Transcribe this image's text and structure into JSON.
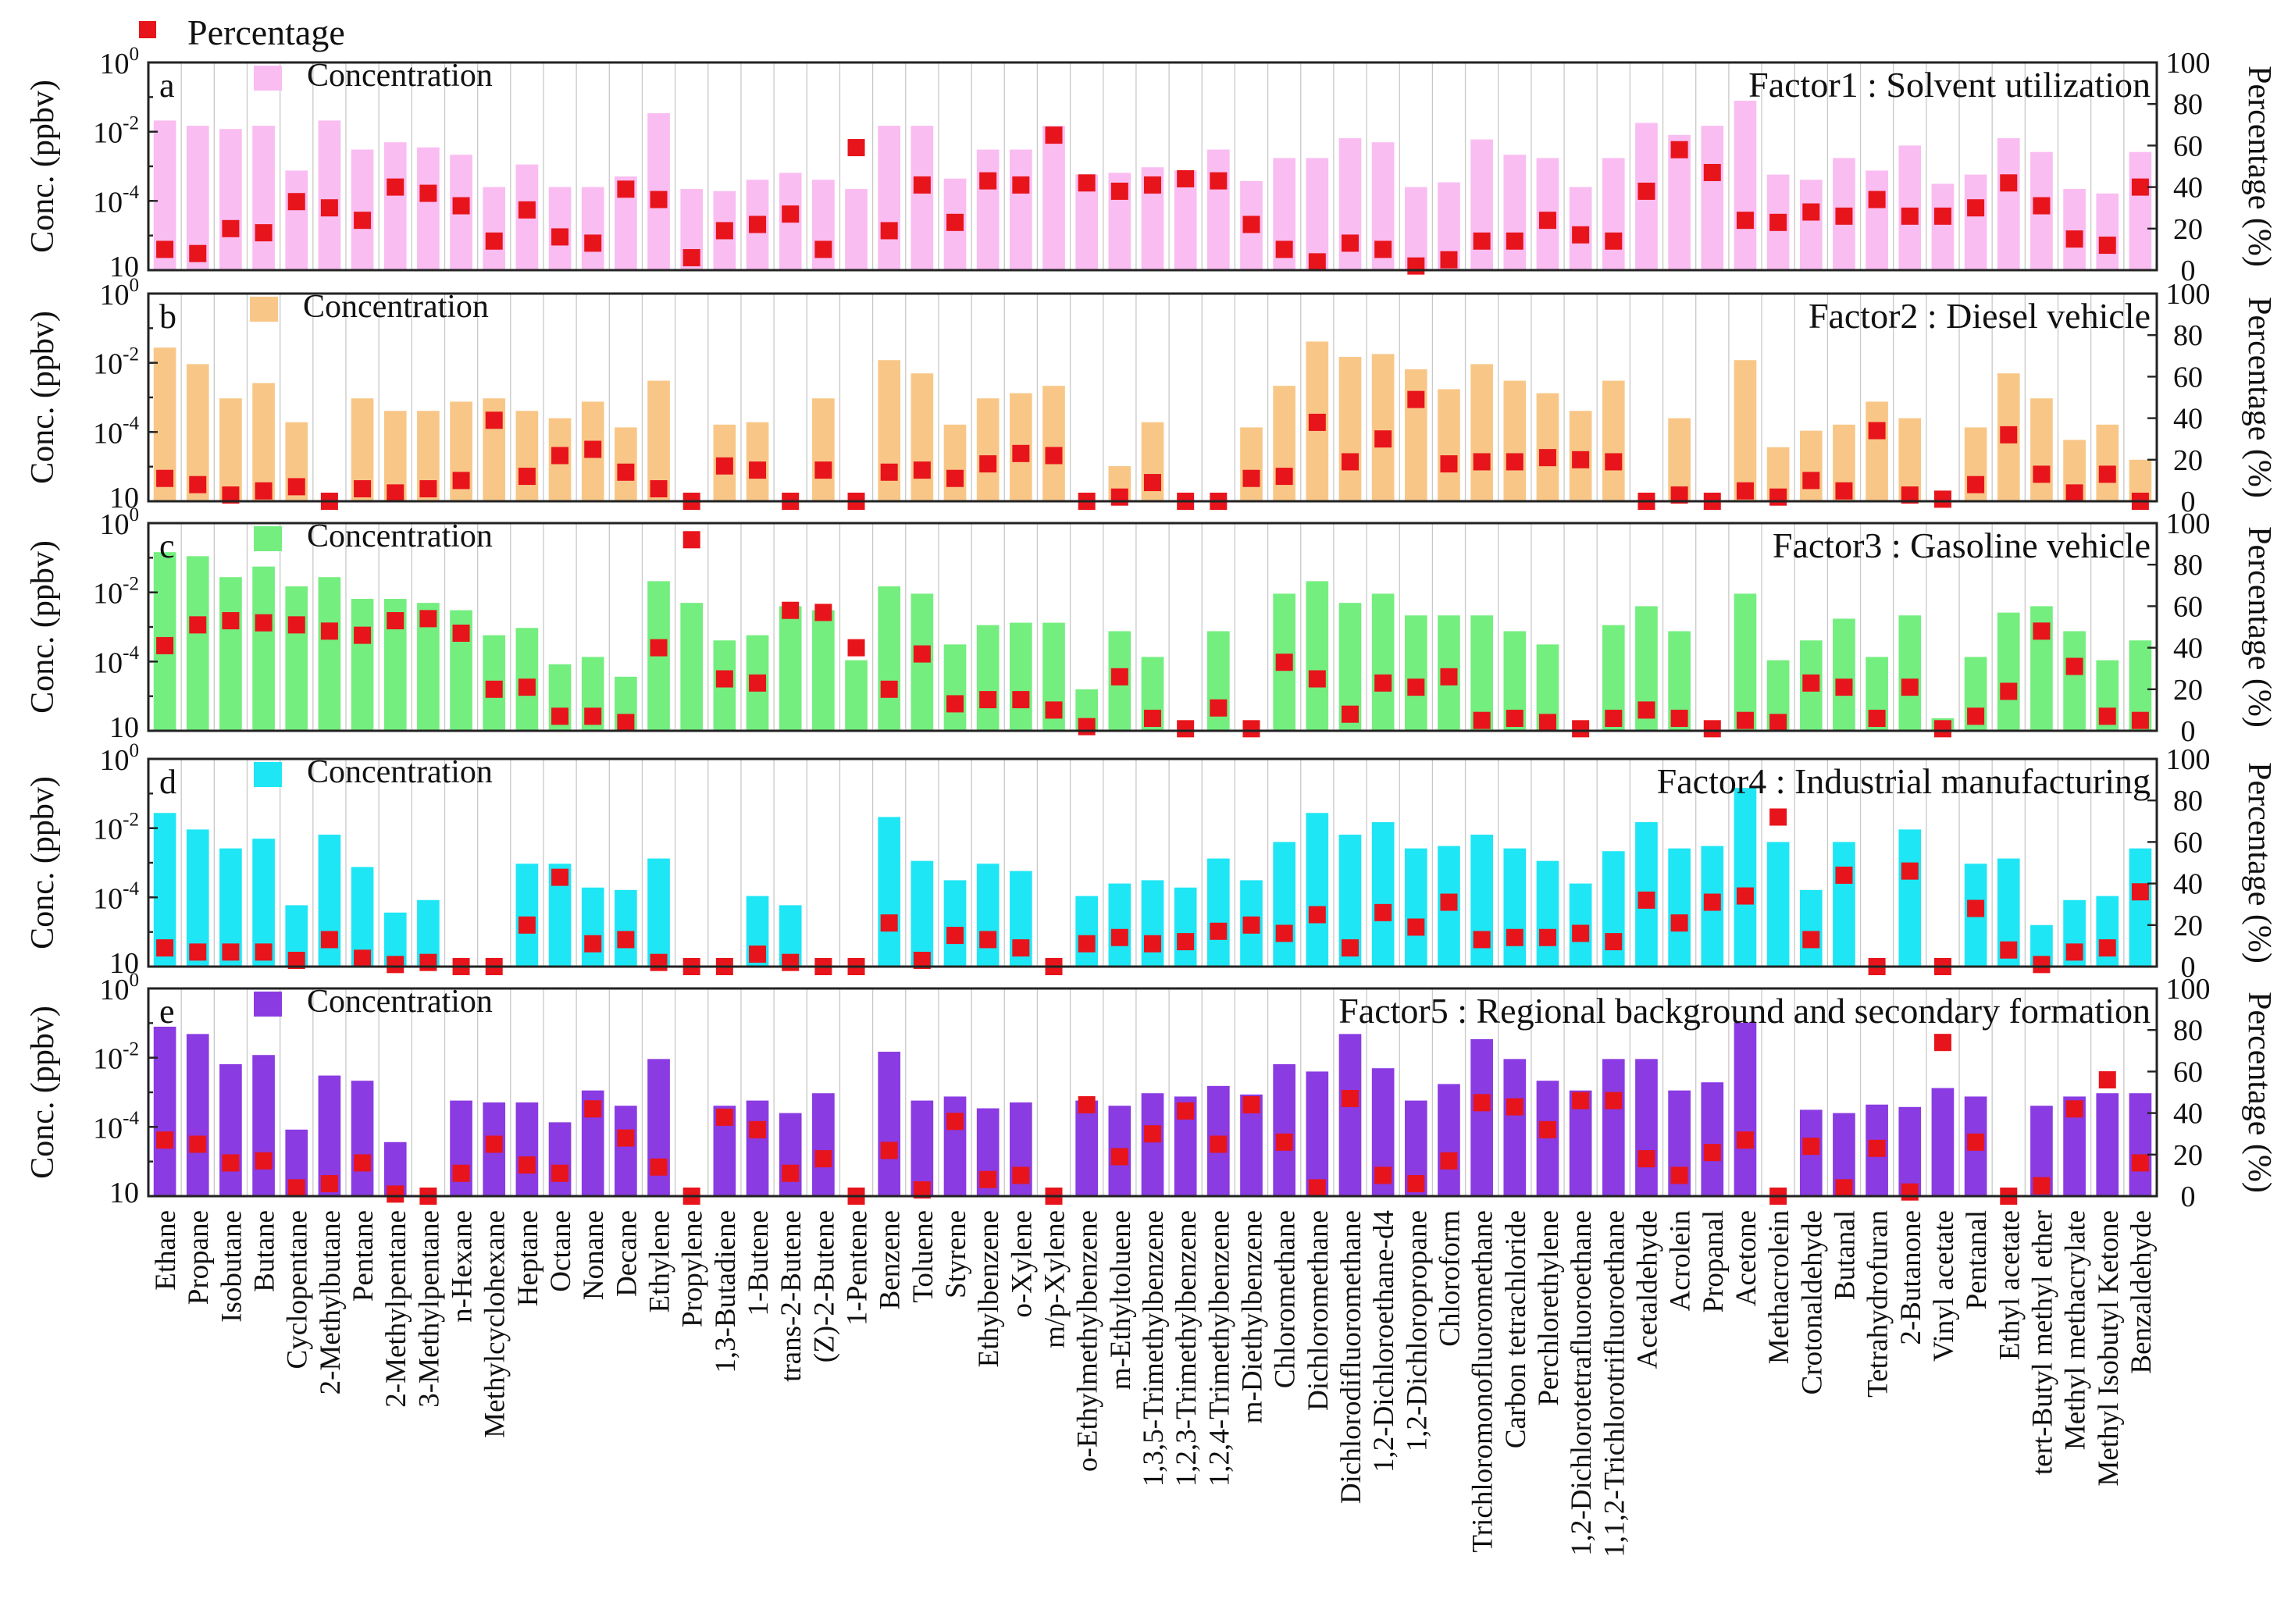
{
  "legend": {
    "percentage_label": "Percentage",
    "concentration_label": "Concentration"
  },
  "axes": {
    "left_label": "Conc. (ppbv)",
    "right_label": "Percentage (%)",
    "left_ticks": [
      {
        "base": "10",
        "exp": "0"
      },
      {
        "base": "10",
        "exp": "-2"
      },
      {
        "base": "10",
        "exp": "-4"
      },
      {
        "base": "10",
        "exp": ""
      }
    ],
    "right_ticks": [
      "100",
      "80",
      "60",
      "40",
      "20",
      "0"
    ]
  },
  "colors": {
    "percentage_marker": "#e8141b",
    "panel_a": "#f9bdf1",
    "panel_b": "#f8c788",
    "panel_c": "#74ee7f",
    "panel_d": "#1fe6f5",
    "panel_e": "#8a3be2"
  },
  "chart_data": {
    "type": "bar",
    "concentration_scale": "log",
    "ylim_concentration": [
      0.0001,
      10
    ],
    "ylim_percentage": [
      0,
      100
    ],
    "grid": true,
    "legend_position": "top-left",
    "categories": [
      "Ethane",
      "Propane",
      "Isobutane",
      "Butane",
      "Cyclopentane",
      "2-Methylbutane",
      "Pentane",
      "2-Methylpentane",
      "3-Methylpentane",
      "n-Hexane",
      "Methylcyclohexane",
      "Heptane",
      "Octane",
      "Nonane",
      "Decane",
      "Ethylene",
      "Propylene",
      "1,3-Butadiene",
      "1-Butene",
      "trans-2-Butene",
      "(Z)-2-Butene",
      "1-Pentene",
      "Benzene",
      "Toluene",
      "Styrene",
      "Ethylbenzene",
      "o-Xylene",
      "m/p-Xylene",
      "o-Ethylmethylbenzene",
      "m-Ethyltoluene",
      "1,3,5-Trimethylbenzene",
      "1,2,3-Trimethylbenzene",
      "1,2,4-Trimethylbenzene",
      "m-Diethylbenzene",
      "Chloromethane",
      "Dichloromethane",
      "Dichlorodifluoromethane",
      "1,2-Dichloroethane-d4",
      "1,2-Dichloropropane",
      "Chloroform",
      "Trichloromonofluoromethane",
      "Carbon tetrachloride",
      "Perchlorethylene",
      "1,2-Dichlorotetrafluoroethane",
      "1,1,2-Trichlorotrifluoroethane",
      "Acetaldehyde",
      "Acrolein",
      "Propanal",
      "Acetone",
      "Methacrolein",
      "Crotonaldehyde",
      "Butanal",
      "Tetrahydrofuran",
      "2-Butanone",
      "Vinyl acetate",
      "Pentanal",
      "Ethyl acetate",
      "tert-Butyl methyl ether",
      "Methyl methacrylate",
      "Methyl Isobutyl Ketone",
      "Benzaldehyde"
    ],
    "panels": [
      {
        "letter": "a",
        "factor_title": "Factor1 : Solvent utilization",
        "concentration": [
          0.4,
          0.3,
          0.25,
          0.3,
          0.025,
          0.4,
          0.08,
          0.12,
          0.09,
          0.06,
          0.01,
          0.035,
          0.01,
          0.01,
          0.018,
          0.6,
          0.009,
          0.008,
          0.015,
          0.022,
          0.015,
          0.009,
          0.3,
          0.3,
          0.016,
          0.08,
          0.08,
          0.3,
          0.02,
          0.022,
          0.03,
          0.025,
          0.08,
          0.014,
          0.05,
          0.05,
          0.15,
          0.12,
          0.01,
          0.013,
          0.14,
          0.06,
          0.05,
          0.01,
          0.05,
          0.35,
          0.18,
          0.3,
          1.2,
          0.02,
          0.015,
          0.05,
          0.025,
          0.1,
          0.012,
          0.02,
          0.15,
          0.07,
          0.009,
          0.007,
          0.07
        ],
        "percentage": [
          10,
          8,
          20,
          18,
          33,
          30,
          24,
          40,
          37,
          31,
          14,
          29,
          16,
          13,
          39,
          34,
          6,
          19,
          22,
          27,
          10,
          59,
          19,
          41,
          23,
          43,
          41,
          65,
          42,
          38,
          41,
          44,
          43,
          22,
          10,
          4,
          13,
          10,
          2,
          5,
          14,
          14,
          24,
          17,
          14,
          38,
          58,
          47,
          24,
          23,
          28,
          26,
          34,
          26,
          26,
          30,
          42,
          31,
          15,
          12,
          40
        ]
      },
      {
        "letter": "b",
        "factor_title": "Factor2 : Diesel vehicle",
        "concentration": [
          0.5,
          0.2,
          0.03,
          0.07,
          0.008,
          null,
          0.03,
          0.015,
          0.015,
          0.025,
          0.03,
          0.015,
          0.01,
          0.025,
          0.006,
          0.08,
          null,
          0.007,
          0.008,
          null,
          0.03,
          null,
          0.25,
          0.12,
          0.007,
          0.03,
          0.04,
          0.06,
          null,
          0.0007,
          0.008,
          null,
          null,
          0.006,
          0.06,
          0.7,
          0.3,
          0.35,
          0.15,
          0.05,
          0.2,
          0.08,
          0.04,
          0.015,
          0.08,
          null,
          0.01,
          null,
          0.25,
          0.002,
          0.005,
          0.007,
          0.025,
          0.01,
          null,
          0.006,
          0.12,
          0.03,
          0.003,
          0.007,
          0.001
        ],
        "percentage": [
          11,
          8,
          3,
          5,
          7,
          0,
          6,
          4,
          6,
          10,
          39,
          12,
          22,
          25,
          14,
          6,
          0,
          17,
          15,
          0,
          15,
          0,
          14,
          15,
          11,
          18,
          23,
          22,
          0,
          2,
          9,
          0,
          0,
          11,
          12,
          38,
          19,
          30,
          49,
          18,
          19,
          19,
          21,
          20,
          19,
          0,
          3,
          0,
          5,
          2,
          10,
          5,
          34,
          3,
          1,
          8,
          32,
          13,
          4,
          13,
          0
        ]
      },
      {
        "letter": "c",
        "factor_title": "Factor3 : Gasoline vehicle",
        "concentration": [
          2,
          1.6,
          0.5,
          0.9,
          0.3,
          0.5,
          0.15,
          0.15,
          0.12,
          0.08,
          0.02,
          0.03,
          0.004,
          0.006,
          0.002,
          0.4,
          0.12,
          0.015,
          0.02,
          0.1,
          0.08,
          0.005,
          0.3,
          0.2,
          0.012,
          0.035,
          0.04,
          0.04,
          0.001,
          0.025,
          0.006,
          null,
          0.025,
          null,
          0.2,
          0.4,
          0.12,
          0.2,
          0.06,
          0.06,
          0.06,
          0.025,
          0.012,
          null,
          0.035,
          0.1,
          0.025,
          null,
          0.2,
          0.005,
          0.015,
          0.05,
          0.006,
          0.06,
          0.0002,
          0.006,
          0.07,
          0.1,
          0.025,
          0.005,
          0.015
        ],
        "percentage": [
          41,
          51,
          53,
          52,
          51,
          48,
          46,
          53,
          54,
          47,
          20,
          21,
          7,
          7,
          4,
          40,
          92,
          25,
          23,
          58,
          57,
          40,
          20,
          37,
          13,
          15,
          15,
          10,
          2,
          26,
          6,
          1,
          11,
          1,
          33,
          25,
          8,
          23,
          21,
          26,
          5,
          6,
          4,
          1,
          6,
          10,
          6,
          1,
          5,
          4,
          23,
          21,
          6,
          21,
          1,
          7,
          19,
          48,
          31,
          7,
          5
        ]
      },
      {
        "letter": "d",
        "factor_title": "Factor4 : Industrial manufacturing",
        "concentration": [
          0.5,
          0.2,
          0.07,
          0.12,
          0.003,
          0.15,
          0.025,
          0.002,
          0.004,
          null,
          null,
          0.03,
          0.03,
          0.008,
          0.007,
          0.04,
          null,
          null,
          0.005,
          0.003,
          null,
          null,
          0.4,
          0.035,
          0.012,
          0.03,
          0.02,
          null,
          0.005,
          0.01,
          0.012,
          0.008,
          0.04,
          0.012,
          0.1,
          0.5,
          0.15,
          0.3,
          0.07,
          0.08,
          0.15,
          0.07,
          0.035,
          0.01,
          0.06,
          0.3,
          0.07,
          0.08,
          2,
          0.1,
          0.007,
          0.1,
          null,
          0.2,
          null,
          0.03,
          0.04,
          0.001,
          0.004,
          0.005,
          0.07
        ],
        "percentage": [
          9,
          7,
          7,
          7,
          3,
          13,
          4,
          1,
          2,
          0,
          0,
          20,
          43,
          11,
          13,
          2,
          0,
          0,
          6,
          2,
          0,
          0,
          21,
          3,
          15,
          13,
          9,
          0,
          11,
          14,
          11,
          12,
          17,
          20,
          16,
          25,
          9,
          26,
          19,
          31,
          13,
          14,
          14,
          16,
          12,
          32,
          21,
          31,
          34,
          72,
          13,
          44,
          0,
          46,
          0,
          28,
          8,
          1,
          7,
          9,
          36
        ]
      },
      {
        "letter": "e",
        "factor_title": "Factor5 : Regional background and secondary formation",
        "concentration": [
          1.2,
          0.8,
          0.15,
          0.25,
          0.004,
          0.08,
          0.06,
          0.002,
          null,
          0.02,
          0.018,
          0.018,
          0.006,
          0.035,
          0.015,
          0.2,
          null,
          0.015,
          0.02,
          0.01,
          0.03,
          null,
          0.3,
          0.02,
          0.025,
          0.013,
          0.018,
          null,
          0.02,
          0.015,
          0.03,
          0.025,
          0.045,
          0.028,
          0.15,
          0.1,
          0.8,
          0.12,
          0.02,
          0.05,
          0.6,
          0.2,
          0.06,
          0.035,
          0.2,
          0.2,
          0.035,
          0.055,
          1.5,
          null,
          0.012,
          0.01,
          0.016,
          0.014,
          0.04,
          0.025,
          null,
          0.015,
          0.025,
          0.03,
          0.03
        ],
        "percentage": [
          27,
          25,
          16,
          17,
          4,
          6,
          16,
          1,
          0,
          11,
          25,
          15,
          11,
          42,
          28,
          14,
          0,
          38,
          32,
          11,
          18,
          0,
          22,
          3,
          36,
          8,
          10,
          0,
          44,
          19,
          30,
          41,
          25,
          44,
          26,
          4,
          47,
          10,
          6,
          17,
          45,
          43,
          32,
          46,
          46,
          18,
          10,
          21,
          27,
          0,
          24,
          4,
          23,
          2,
          74,
          26,
          0,
          5,
          42,
          56,
          16
        ]
      }
    ]
  }
}
